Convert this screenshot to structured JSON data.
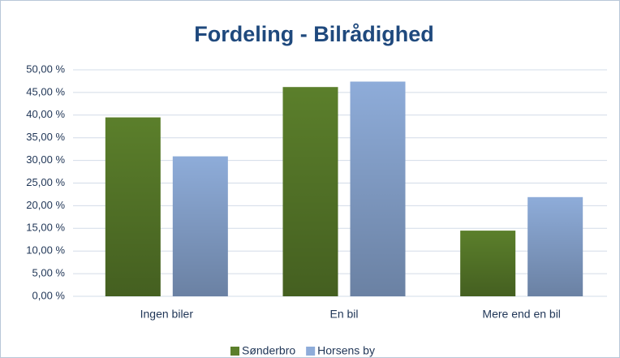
{
  "chart_data": {
    "type": "bar",
    "title": "Fordeling - Bilrådighed",
    "categories": [
      "Ingen biler",
      "En bil",
      "Mere end en bil"
    ],
    "series": [
      {
        "name": "Sønderbro",
        "color": "#5b7f2b",
        "values": [
          39.5,
          46.2,
          14.5
        ]
      },
      {
        "name": "Horsens by",
        "color": "#8eacd9",
        "values": [
          30.9,
          47.4,
          21.9
        ]
      }
    ],
    "ylim": [
      0,
      50
    ],
    "yticks": [
      {
        "value": 0,
        "label": "0,00 %"
      },
      {
        "value": 5,
        "label": "5,00 %"
      },
      {
        "value": 10,
        "label": "10,00 %"
      },
      {
        "value": 15,
        "label": "15,00 %"
      },
      {
        "value": 20,
        "label": "20,00 %"
      },
      {
        "value": 25,
        "label": "25,00 %"
      },
      {
        "value": 30,
        "label": "30,00 %"
      },
      {
        "value": 35,
        "label": "35,00 %"
      },
      {
        "value": 40,
        "label": "40,00 %"
      },
      {
        "value": 45,
        "label": "45,00 %"
      },
      {
        "value": 50,
        "label": "50,00 %"
      }
    ],
    "grid": true,
    "legend": "bottom"
  }
}
